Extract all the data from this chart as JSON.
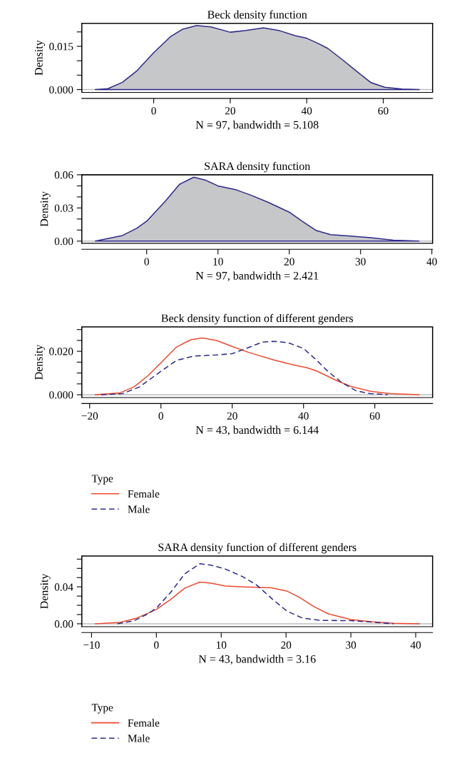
{
  "chart_data": [
    {
      "type": "area",
      "title": "Beck density function",
      "xlabel": "N = 97, bandwidth = 5.108",
      "ylabel": "Density",
      "xlim": [
        -18.8,
        72.9
      ],
      "ylim": [
        -0.001,
        0.023
      ],
      "xticks": [
        0,
        20,
        40,
        60
      ],
      "yticks": [
        {
          "value": 0,
          "label": "0.000"
        },
        {
          "value": 0.005,
          "label": null
        },
        {
          "value": 0.01,
          "label": null
        },
        {
          "value": 0.015,
          "label": "0.015"
        },
        {
          "value": 0.02,
          "label": null
        }
      ],
      "grid": false,
      "legend": false,
      "ref_lines": [
        {
          "axis": "y",
          "value": 0,
          "color": "#bebebe"
        }
      ],
      "x": [
        -15.3,
        -12,
        -8.2,
        -4.5,
        0,
        4.5,
        7.5,
        11.2,
        15,
        20,
        24,
        28.7,
        33,
        37,
        40,
        43,
        45.5,
        49.3,
        53,
        56.7,
        60.4,
        65,
        69.4
      ],
      "series": [
        {
          "type": "area",
          "color": "#c6c7c9",
          "values": [
            0,
            0.0003,
            0.0025,
            0.0064,
            0.0128,
            0.0185,
            0.0209,
            0.0222,
            0.0217,
            0.0199,
            0.0205,
            0.0214,
            0.0204,
            0.0187,
            0.0178,
            0.016,
            0.0143,
            0.0104,
            0.0064,
            0.0025,
            0.0008,
            0.0002,
            0
          ]
        }
      ]
    },
    {
      "type": "area",
      "title": "SARA density function",
      "xlabel": "N = 97, bandwidth = 2.421",
      "ylabel": "Density",
      "xlim": [
        -9.1,
        40.1
      ],
      "ylim": [
        -0.002,
        0.06
      ],
      "xticks": [
        0,
        10,
        20,
        30,
        40
      ],
      "yticks": [
        {
          "value": 0,
          "label": "0.00"
        },
        {
          "value": 0.01,
          "label": null
        },
        {
          "value": 0.02,
          "label": null
        },
        {
          "value": 0.03,
          "label": "0.03"
        },
        {
          "value": 0.04,
          "label": null
        },
        {
          "value": 0.05,
          "label": null
        },
        {
          "value": 0.06,
          "label": "0.06"
        }
      ],
      "grid": false,
      "legend": false,
      "ref_lines": [
        {
          "axis": "y",
          "value": 0,
          "color": "#bebebe"
        }
      ],
      "x": [
        -7.2,
        -3.4,
        -1.4,
        0,
        2.6,
        4.6,
        6.6,
        8.2,
        10,
        12.6,
        14.6,
        17,
        20,
        21.8,
        23.8,
        25.8,
        28.6,
        31.4,
        34.6,
        38.2
      ],
      "series": [
        {
          "type": "area",
          "color": "#c6c7c9",
          "values": [
            0,
            0.0051,
            0.0116,
            0.018,
            0.036,
            0.0514,
            0.0578,
            0.0553,
            0.05,
            0.0463,
            0.0416,
            0.0352,
            0.0262,
            0.018,
            0.0095,
            0.0059,
            0.0046,
            0.0031,
            0.0008,
            0
          ]
        }
      ]
    },
    {
      "type": "line",
      "title": "Beck density function of different genders",
      "xlabel": "N = 43, bandwidth = 6.144",
      "ylabel": "Density",
      "legend_title": "Type",
      "legend": "bottom left",
      "xlim": [
        -22.2,
        76.2
      ],
      "ylim": [
        -0.0013,
        0.0312
      ],
      "xticks": [
        {
          "value": -20,
          "label": "−20"
        },
        0,
        20,
        40,
        60
      ],
      "yticks": [
        {
          "value": 0,
          "label": "0.000"
        },
        {
          "value": 0.005,
          "label": null
        },
        {
          "value": 0.01,
          "label": null
        },
        {
          "value": 0.015,
          "label": null
        },
        {
          "value": 0.02,
          "label": "0.020"
        },
        {
          "value": 0.025,
          "label": null
        },
        {
          "value": 0.03,
          "label": null
        }
      ],
      "grid": false,
      "ref_lines": [
        {
          "axis": "y",
          "value": 0,
          "color": "#bebebe"
        }
      ],
      "series": [
        {
          "name": "Female",
          "color": "#f04a2e",
          "line_style": "solid",
          "x": [
            -18.4,
            -11.6,
            -7.6,
            -3.6,
            0,
            4.4,
            8.4,
            11.6,
            15.6,
            20,
            24.4,
            31.6,
            37.2,
            40.8,
            43.6,
            49.2,
            53.2,
            58.8,
            64.4,
            72.4
          ],
          "values": [
            0,
            0.0008,
            0.0036,
            0.0088,
            0.0147,
            0.022,
            0.0253,
            0.0261,
            0.025,
            0.0222,
            0.0196,
            0.016,
            0.0137,
            0.0125,
            0.011,
            0.0066,
            0.0039,
            0.0016,
            0.0005,
            0
          ]
        },
        {
          "name": "Male",
          "color": "#2e2a8c",
          "line_style": "dashed",
          "x": [
            -16.8,
            -10.8,
            -6,
            0,
            4.4,
            9.2,
            15.6,
            20,
            24.4,
            28.4,
            31.6,
            35.6,
            40,
            43.6,
            46.8,
            50.8,
            54.8,
            58.8,
            63.6
          ],
          "values": [
            0,
            0.0005,
            0.0036,
            0.0108,
            0.0158,
            0.0178,
            0.0183,
            0.0189,
            0.0216,
            0.0242,
            0.0246,
            0.024,
            0.0213,
            0.016,
            0.0108,
            0.0055,
            0.0018,
            0.0005,
            0
          ]
        }
      ]
    },
    {
      "type": "line",
      "title": "SARA density function of different genders",
      "xlabel": "N = 43, bandwidth = 3.16",
      "ylabel": "Density",
      "legend_title": "Type",
      "legend": "bottom left",
      "xlim": [
        -11.5,
        42.6
      ],
      "ylim": [
        -0.0031,
        0.0734
      ],
      "xticks": [
        {
          "value": -10,
          "label": "−10"
        },
        0,
        10,
        20,
        30,
        40
      ],
      "yticks": [
        {
          "value": 0,
          "label": "0.00"
        },
        {
          "value": 0.01,
          "label": null
        },
        {
          "value": 0.02,
          "label": null
        },
        {
          "value": 0.03,
          "label": null
        },
        {
          "value": 0.04,
          "label": "0.04"
        },
        {
          "value": 0.05,
          "label": null
        },
        {
          "value": 0.06,
          "label": null
        },
        {
          "value": 0.07,
          "label": null
        }
      ],
      "grid": false,
      "ref_lines": [
        {
          "axis": "y",
          "value": 0,
          "color": "#bebebe"
        }
      ],
      "series": [
        {
          "name": "Female",
          "color": "#f04a2e",
          "line_style": "solid",
          "x": [
            -9.4,
            -5.6,
            -3,
            0,
            2.2,
            4.4,
            6.7,
            8.4,
            10.6,
            13.3,
            17.7,
            20.1,
            22.1,
            24.3,
            26.5,
            30,
            33.1,
            36.6,
            40.6
          ],
          "values": [
            0,
            0.0015,
            0.0062,
            0.0155,
            0.0263,
            0.0387,
            0.0452,
            0.044,
            0.0409,
            0.04,
            0.039,
            0.0356,
            0.0285,
            0.0186,
            0.0108,
            0.0046,
            0.0022,
            0.0006,
            0
          ]
        },
        {
          "name": "Male",
          "color": "#2e2a8c",
          "line_style": "dashed",
          "x": [
            -6,
            -3.5,
            -1.3,
            0,
            2.2,
            4.4,
            6.7,
            8.4,
            10.6,
            13.3,
            15.5,
            17.7,
            20.1,
            22.5,
            25.2,
            30,
            33.1,
            36.6
          ],
          "values": [
            0,
            0.0031,
            0.0108,
            0.017,
            0.034,
            0.0542,
            0.065,
            0.0635,
            0.0594,
            0.0511,
            0.0418,
            0.0279,
            0.0139,
            0.0062,
            0.0037,
            0.0034,
            0.0019,
            0
          ]
        }
      ]
    }
  ]
}
